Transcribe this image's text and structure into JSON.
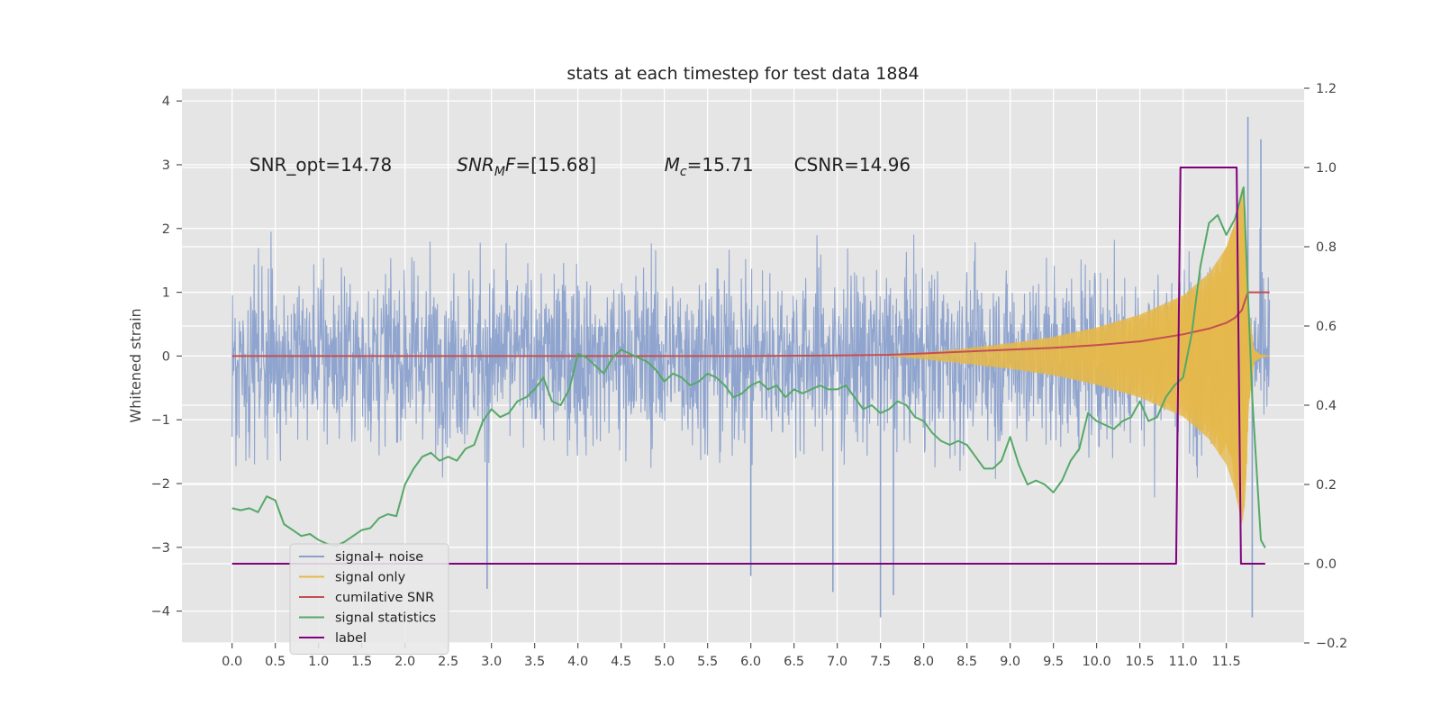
{
  "chart_data": {
    "type": "line",
    "title": "stats at each timestep for test data 1884",
    "ylabel": "Whitened strain",
    "y2label": "",
    "xlim": [
      -0.58,
      12.4
    ],
    "ylim": [
      -4.5,
      4.2
    ],
    "y2lim": [
      -0.2,
      1.2
    ],
    "x_ticks": [
      0.0,
      0.5,
      1.0,
      1.5,
      2.0,
      2.5,
      3.0,
      3.5,
      4.0,
      4.5,
      5.0,
      5.5,
      6.0,
      6.5,
      7.0,
      7.5,
      8.0,
      8.5,
      9.0,
      9.5,
      10.0,
      10.5,
      11.0,
      11.5
    ],
    "x_tick_labels": [
      "0.0",
      "0.5",
      "1.0",
      "1.5",
      "2.0",
      "2.5",
      "3.0",
      "3.5",
      "4.0",
      "4.5",
      "5.0",
      "5.5",
      "6.0",
      "6.5",
      "7.0",
      "7.5",
      "8.0",
      "8.5",
      "9.0",
      "9.5",
      "10.0",
      "10.5",
      "11.0",
      "11.5"
    ],
    "y_ticks": [
      -4,
      -3,
      -2,
      -1,
      0,
      1,
      2,
      3,
      4
    ],
    "y_tick_labels": [
      "−4",
      "−3",
      "−2",
      "−1",
      "0",
      "1",
      "2",
      "3",
      "4"
    ],
    "y2_ticks": [
      -0.2,
      0.0,
      0.2,
      0.4,
      0.6,
      0.8,
      1.0,
      1.2
    ],
    "y2_tick_labels": [
      "−0.2",
      "0.0",
      "0.2",
      "0.4",
      "0.6",
      "0.8",
      "1.0",
      "1.2"
    ],
    "grid": true,
    "legend_position": "lower-left",
    "annotations": [
      {
        "x": 0.2,
        "y": 3.0,
        "prefix": "SNR_opt=14.78",
        "sub": "",
        "suffix": "",
        "italic": false
      },
      {
        "x": 2.6,
        "y": 3.0,
        "prefix": "SNR",
        "sub": "M",
        "suffix": "F",
        "tail": "=[15.68]",
        "italic": true
      },
      {
        "x": 5.0,
        "y": 3.0,
        "prefix": "M",
        "sub": "c",
        "suffix": "",
        "tail": "=15.71",
        "italic": true
      },
      {
        "x": 6.5,
        "y": 3.0,
        "prefix": "CSNR=14.96",
        "sub": "",
        "suffix": "",
        "italic": false
      }
    ],
    "series": [
      {
        "name": "signal+ noise",
        "color": "#8aa0cc",
        "axis": "left",
        "kind": "noise",
        "x_range": [
          0.0,
          12.0
        ],
        "typical_amplitude": 1.8,
        "max_amplitude": 3.8,
        "spikes": [
          {
            "x": 2.95,
            "y": -3.65
          },
          {
            "x": 6.0,
            "y": -3.45
          },
          {
            "x": 6.95,
            "y": -3.7
          },
          {
            "x": 7.5,
            "y": -4.1
          },
          {
            "x": 7.65,
            "y": -3.75
          },
          {
            "x": 11.75,
            "y": 3.75
          },
          {
            "x": 11.8,
            "y": -4.1
          },
          {
            "x": 11.9,
            "y": 3.4
          }
        ]
      },
      {
        "name": "signal only",
        "color": "#e6b84a",
        "axis": "left",
        "kind": "chirp",
        "x": [
          7.6,
          8.0,
          8.5,
          9.0,
          9.5,
          10.0,
          10.5,
          11.0,
          11.3,
          11.5,
          11.6,
          11.68,
          11.72,
          11.76,
          11.82,
          11.9,
          12.0
        ],
        "envelope": [
          0.0,
          0.05,
          0.12,
          0.2,
          0.3,
          0.45,
          0.65,
          0.95,
          1.3,
          1.7,
          2.1,
          2.65,
          2.3,
          0.8,
          0.1,
          0.02,
          0.0
        ]
      },
      {
        "name": "cumilative SNR",
        "color": "#c44e52",
        "axis": "left",
        "x": [
          0.0,
          6.0,
          7.0,
          7.6,
          8.0,
          8.5,
          9.0,
          9.5,
          10.0,
          10.5,
          11.0,
          11.3,
          11.5,
          11.6,
          11.68,
          11.72,
          11.75,
          11.8,
          12.0
        ],
        "y": [
          0.0,
          0.0,
          0.01,
          0.02,
          0.04,
          0.07,
          0.1,
          0.13,
          0.17,
          0.23,
          0.34,
          0.43,
          0.52,
          0.6,
          0.72,
          0.88,
          1.0,
          1.0,
          1.0
        ]
      },
      {
        "name": "signal statistics",
        "color": "#55a868",
        "axis": "right",
        "x": [
          0.0,
          0.1,
          0.2,
          0.3,
          0.4,
          0.5,
          0.6,
          0.7,
          0.8,
          0.9,
          1.0,
          1.1,
          1.2,
          1.3,
          1.4,
          1.5,
          1.6,
          1.7,
          1.8,
          1.9,
          2.0,
          2.1,
          2.2,
          2.3,
          2.4,
          2.5,
          2.6,
          2.7,
          2.8,
          2.9,
          3.0,
          3.1,
          3.2,
          3.3,
          3.4,
          3.5,
          3.6,
          3.7,
          3.8,
          3.9,
          4.0,
          4.1,
          4.2,
          4.3,
          4.4,
          4.5,
          4.6,
          4.7,
          4.8,
          4.9,
          5.0,
          5.1,
          5.2,
          5.3,
          5.4,
          5.5,
          5.6,
          5.7,
          5.8,
          5.9,
          6.0,
          6.1,
          6.2,
          6.3,
          6.4,
          6.5,
          6.6,
          6.7,
          6.8,
          6.9,
          7.0,
          7.1,
          7.2,
          7.3,
          7.4,
          7.5,
          7.6,
          7.7,
          7.8,
          7.9,
          8.0,
          8.1,
          8.2,
          8.3,
          8.4,
          8.5,
          8.6,
          8.7,
          8.8,
          8.9,
          9.0,
          9.1,
          9.2,
          9.3,
          9.4,
          9.5,
          9.6,
          9.7,
          9.8,
          9.9,
          10.0,
          10.1,
          10.2,
          10.3,
          10.4,
          10.5,
          10.6,
          10.7,
          10.8,
          10.9,
          11.0,
          11.1,
          11.2,
          11.3,
          11.4,
          11.5,
          11.6,
          11.7,
          11.8,
          11.9,
          11.95
        ],
        "y": [
          0.14,
          0.135,
          0.14,
          0.13,
          0.17,
          0.16,
          0.1,
          0.085,
          0.07,
          0.075,
          0.06,
          0.05,
          0.045,
          0.055,
          0.07,
          0.085,
          0.09,
          0.115,
          0.125,
          0.12,
          0.2,
          0.24,
          0.27,
          0.28,
          0.26,
          0.27,
          0.26,
          0.29,
          0.3,
          0.36,
          0.39,
          0.37,
          0.38,
          0.41,
          0.42,
          0.44,
          0.47,
          0.41,
          0.4,
          0.44,
          0.53,
          0.52,
          0.5,
          0.48,
          0.52,
          0.54,
          0.53,
          0.52,
          0.51,
          0.49,
          0.46,
          0.48,
          0.47,
          0.45,
          0.46,
          0.48,
          0.47,
          0.45,
          0.42,
          0.43,
          0.45,
          0.46,
          0.44,
          0.45,
          0.42,
          0.44,
          0.43,
          0.44,
          0.45,
          0.44,
          0.44,
          0.45,
          0.42,
          0.39,
          0.4,
          0.38,
          0.39,
          0.41,
          0.4,
          0.37,
          0.36,
          0.33,
          0.31,
          0.3,
          0.31,
          0.3,
          0.27,
          0.24,
          0.24,
          0.26,
          0.32,
          0.25,
          0.2,
          0.21,
          0.2,
          0.18,
          0.21,
          0.26,
          0.29,
          0.38,
          0.36,
          0.35,
          0.34,
          0.36,
          0.37,
          0.41,
          0.36,
          0.37,
          0.42,
          0.45,
          0.47,
          0.58,
          0.75,
          0.86,
          0.88,
          0.83,
          0.87,
          0.95,
          0.42,
          0.06,
          0.04
        ]
      },
      {
        "name": "label",
        "color": "#800080",
        "axis": "right",
        "x": [
          0.0,
          10.92,
          10.97,
          11.62,
          11.67,
          11.95
        ],
        "y": [
          0.0,
          0.0,
          1.0,
          1.0,
          0.0,
          0.0
        ]
      }
    ],
    "legend": [
      {
        "label": "signal+ noise",
        "color": "#8aa0cc"
      },
      {
        "label": "signal only",
        "color": "#e6b84a"
      },
      {
        "label": "cumilative SNR",
        "color": "#c44e52"
      },
      {
        "label": "signal statistics",
        "color": "#55a868"
      },
      {
        "label": "label",
        "color": "#800080"
      }
    ]
  }
}
